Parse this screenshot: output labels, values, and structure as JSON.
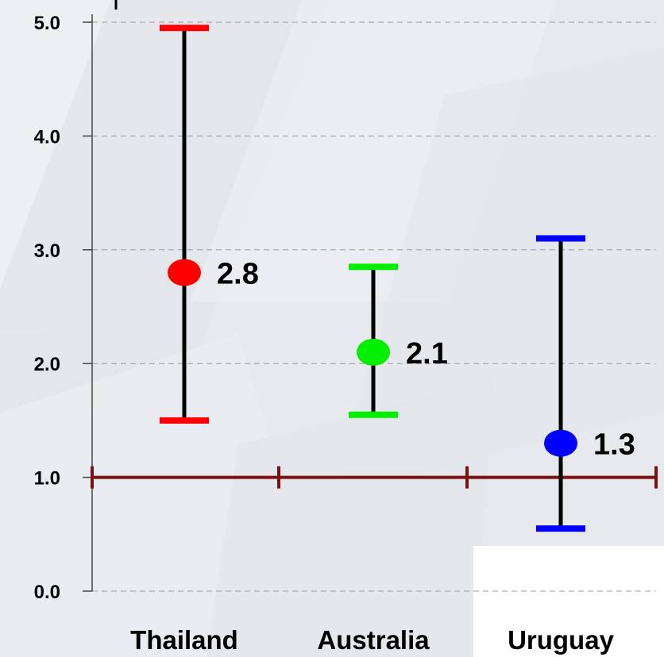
{
  "chart_data": {
    "type": "scatter",
    "title": "",
    "xlabel": "",
    "ylabel": "",
    "ylim": [
      0,
      5
    ],
    "y_ticks": [
      "0.0",
      "1.0",
      "2.0",
      "3.0",
      "4.0",
      "5.0"
    ],
    "grid": "horizontal dashed",
    "reference_line": {
      "y": 1.0,
      "color": "#7a1010"
    },
    "categories": [
      "Thailand",
      "Australia",
      "Uruguay"
    ],
    "series": [
      {
        "values": [
          2.8,
          2.1,
          1.3
        ],
        "lower": [
          1.5,
          1.55,
          0.55
        ],
        "upper": [
          4.95,
          2.85,
          3.1
        ],
        "labels": [
          "2.8",
          "2.1",
          "1.3"
        ],
        "colors": [
          "#ff0000",
          "#00ee00",
          "#0000ff"
        ]
      }
    ]
  }
}
